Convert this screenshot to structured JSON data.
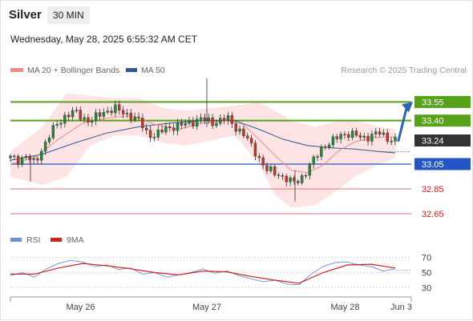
{
  "header": {
    "symbol": "Silver",
    "timeframe": "30 MIN",
    "datetime": "Wednesday, May 28, 2025 6:55:32 AM CET"
  },
  "legend": {
    "ma20": "MA 20 + Bollinger Bands",
    "ma50": "MA 50",
    "credit": "Research © 2025 Trading Central"
  },
  "rsi_legend": {
    "rsi": "RSI",
    "ma9": "9MA"
  },
  "colors": {
    "resistance": "#58a21a",
    "pivot": "#2356c4",
    "support": "#e07070",
    "current": "#333333",
    "ma20": "#f08a8a",
    "ma50": "#2f5a96",
    "bollinger": "#fde0e0",
    "rsi": "#6a8fe0",
    "rsi_ma9": "#d02020"
  },
  "chart_data": [
    {
      "type": "candlestick",
      "x_range": [
        0,
        100
      ],
      "ylim": [
        32.56,
        33.72
      ],
      "x_ticks": [
        {
          "label": "May 26",
          "x": 17.5
        },
        {
          "label": "May 27",
          "x": 49
        },
        {
          "label": "May 28",
          "x": 83.5
        },
        {
          "label": "Jun 3",
          "x": 97.5
        }
      ],
      "levels": [
        {
          "label": "33.55",
          "value": 33.55,
          "kind": "resistance"
        },
        {
          "label": "33.40",
          "value": 33.4,
          "kind": "resistance"
        },
        {
          "label": "33.24",
          "value": 33.24,
          "kind": "current"
        },
        {
          "label": "33.05",
          "value": 33.05,
          "kind": "pivot"
        },
        {
          "label": "32.85",
          "value": 32.85,
          "kind": "support"
        },
        {
          "label": "32.65",
          "value": 32.65,
          "kind": "support"
        }
      ],
      "price": [
        [
          0,
          33.1
        ],
        [
          2,
          33.08
        ],
        [
          4,
          33.12
        ],
        [
          6,
          33.05
        ],
        [
          8,
          33.18
        ],
        [
          10,
          33.3
        ],
        [
          12,
          33.38
        ],
        [
          14,
          33.45
        ],
        [
          16,
          33.47
        ],
        [
          18,
          33.42
        ],
        [
          20,
          33.4
        ],
        [
          22,
          33.44
        ],
        [
          24,
          33.48
        ],
        [
          26,
          33.5
        ],
        [
          28,
          33.46
        ],
        [
          30,
          33.44
        ],
        [
          32,
          33.4
        ],
        [
          34,
          33.3
        ],
        [
          36,
          33.28
        ],
        [
          38,
          33.32
        ],
        [
          40,
          33.35
        ],
        [
          42,
          33.36
        ],
        [
          44,
          33.37
        ],
        [
          46,
          33.4
        ],
        [
          48,
          33.42
        ],
        [
          50,
          33.38
        ],
        [
          52,
          33.4
        ],
        [
          54,
          33.42
        ],
        [
          56,
          33.35
        ],
        [
          58,
          33.3
        ],
        [
          60,
          33.2
        ],
        [
          62,
          33.1
        ],
        [
          64,
          33.0
        ],
        [
          66,
          32.98
        ],
        [
          68,
          32.95
        ],
        [
          70,
          32.9
        ],
        [
          72,
          32.92
        ],
        [
          74,
          33.0
        ],
        [
          76,
          33.1
        ],
        [
          78,
          33.2
        ],
        [
          80,
          33.22
        ],
        [
          82,
          33.28
        ],
        [
          84,
          33.3
        ],
        [
          86,
          33.28
        ],
        [
          88,
          33.26
        ],
        [
          90,
          33.28
        ],
        [
          92,
          33.3
        ],
        [
          94,
          33.26
        ],
        [
          96,
          33.24
        ]
      ],
      "spikes": [
        {
          "x": 49,
          "high": 33.74,
          "low": 33.35
        },
        {
          "x": 5,
          "high": 33.12,
          "low": 32.91
        },
        {
          "x": 71,
          "high": 33.0,
          "low": 32.75
        }
      ],
      "ma20": [
        [
          0,
          33.05
        ],
        [
          6,
          33.1
        ],
        [
          12,
          33.25
        ],
        [
          18,
          33.38
        ],
        [
          24,
          33.42
        ],
        [
          30,
          33.44
        ],
        [
          36,
          33.37
        ],
        [
          42,
          33.33
        ],
        [
          48,
          33.38
        ],
        [
          54,
          33.4
        ],
        [
          58,
          33.37
        ],
        [
          62,
          33.25
        ],
        [
          66,
          33.12
        ],
        [
          70,
          33.0
        ],
        [
          74,
          32.98
        ],
        [
          78,
          33.04
        ],
        [
          82,
          33.16
        ],
        [
          86,
          33.23
        ],
        [
          90,
          33.26
        ],
        [
          94,
          33.27
        ],
        [
          96,
          33.27
        ]
      ],
      "ma50": [
        [
          0,
          33.08
        ],
        [
          8,
          33.13
        ],
        [
          16,
          33.22
        ],
        [
          24,
          33.3
        ],
        [
          32,
          33.35
        ],
        [
          40,
          33.38
        ],
        [
          48,
          33.4
        ],
        [
          56,
          33.4
        ],
        [
          62,
          33.33
        ],
        [
          68,
          33.25
        ],
        [
          74,
          33.2
        ],
        [
          80,
          33.18
        ],
        [
          86,
          33.17
        ],
        [
          92,
          33.15
        ],
        [
          96,
          33.14
        ]
      ],
      "bollinger_upper": [
        [
          0,
          33.15
        ],
        [
          8,
          33.35
        ],
        [
          14,
          33.62
        ],
        [
          20,
          33.6
        ],
        [
          26,
          33.58
        ],
        [
          32,
          33.58
        ],
        [
          38,
          33.5
        ],
        [
          44,
          33.48
        ],
        [
          50,
          33.5
        ],
        [
          56,
          33.52
        ],
        [
          62,
          33.55
        ],
        [
          66,
          33.48
        ],
        [
          70,
          33.4
        ],
        [
          76,
          33.35
        ],
        [
          82,
          33.4
        ],
        [
          86,
          33.4
        ],
        [
          92,
          33.35
        ],
        [
          96,
          33.33
        ]
      ],
      "bollinger_lower": [
        [
          0,
          32.95
        ],
        [
          8,
          32.88
        ],
        [
          14,
          32.95
        ],
        [
          20,
          33.2
        ],
        [
          26,
          33.28
        ],
        [
          32,
          33.28
        ],
        [
          38,
          33.22
        ],
        [
          44,
          33.2
        ],
        [
          50,
          33.24
        ],
        [
          56,
          33.28
        ],
        [
          62,
          33.05
        ],
        [
          66,
          32.8
        ],
        [
          70,
          32.7
        ],
        [
          76,
          32.72
        ],
        [
          82,
          32.85
        ],
        [
          86,
          32.95
        ],
        [
          92,
          33.05
        ],
        [
          96,
          33.1
        ]
      ],
      "projection_arrow": {
        "from": 33.24,
        "to": 33.55
      }
    },
    {
      "type": "line",
      "title": "RSI",
      "ylim": [
        20,
        80
      ],
      "y_ticks": [
        70,
        50,
        30
      ],
      "series": [
        {
          "name": "RSI",
          "points": [
            [
              0,
              46
            ],
            [
              3,
              50
            ],
            [
              6,
              44
            ],
            [
              9,
              55
            ],
            [
              12,
              62
            ],
            [
              15,
              66
            ],
            [
              18,
              64
            ],
            [
              21,
              58
            ],
            [
              24,
              60
            ],
            [
              27,
              54
            ],
            [
              30,
              56
            ],
            [
              33,
              48
            ],
            [
              36,
              50
            ],
            [
              39,
              44
            ],
            [
              42,
              47
            ],
            [
              45,
              50
            ],
            [
              48,
              55
            ],
            [
              51,
              49
            ],
            [
              54,
              52
            ],
            [
              57,
              46
            ],
            [
              60,
              42
            ],
            [
              63,
              38
            ],
            [
              66,
              40
            ],
            [
              69,
              35
            ],
            [
              72,
              34
            ],
            [
              75,
              48
            ],
            [
              78,
              58
            ],
            [
              81,
              63
            ],
            [
              84,
              64
            ],
            [
              87,
              60
            ],
            [
              90,
              58
            ],
            [
              93,
              52
            ],
            [
              96,
              55
            ]
          ]
        },
        {
          "name": "9MA",
          "points": [
            [
              0,
              48
            ],
            [
              6,
              48
            ],
            [
              12,
              56
            ],
            [
              18,
              62
            ],
            [
              24,
              59
            ],
            [
              30,
              55
            ],
            [
              36,
              50
            ],
            [
              42,
              47
            ],
            [
              48,
              52
            ],
            [
              54,
              51
            ],
            [
              60,
              45
            ],
            [
              66,
              40
            ],
            [
              72,
              36
            ],
            [
              78,
              50
            ],
            [
              84,
              60
            ],
            [
              90,
              61
            ],
            [
              96,
              56
            ]
          ]
        }
      ]
    }
  ]
}
